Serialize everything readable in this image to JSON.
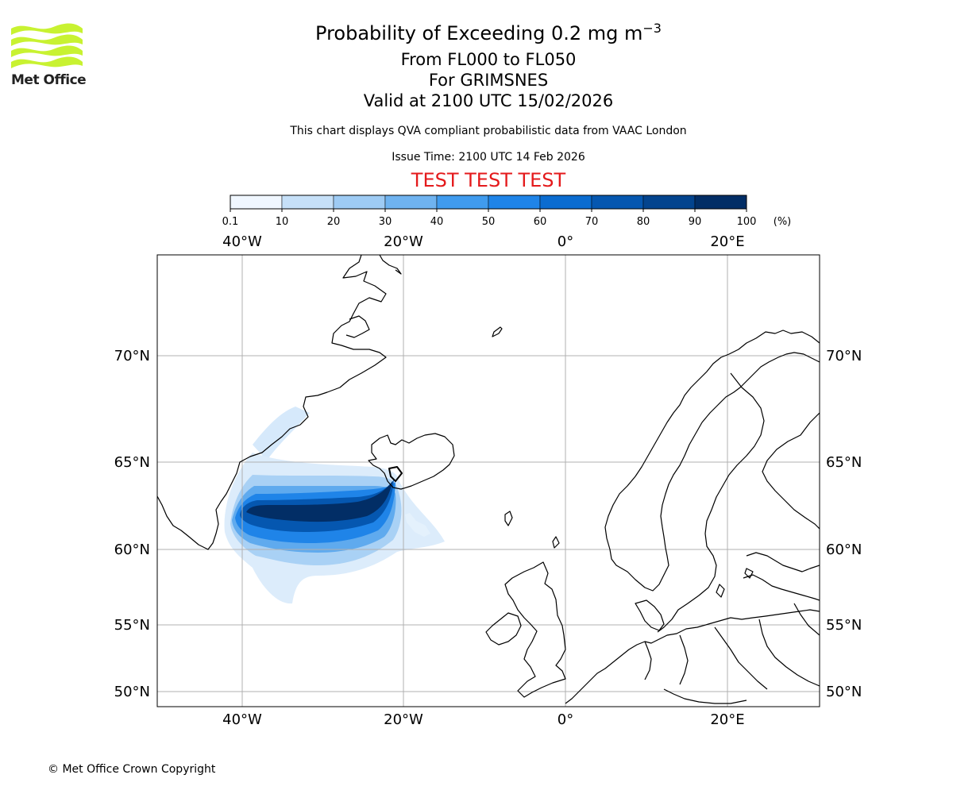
{
  "header": {
    "logo_text": "Met Office",
    "title_main": "Probability of Exceeding 0.2 mg m",
    "title_sup": "−3",
    "levels": "From FL000 to FL050",
    "volcano": "For GRIMSNES",
    "valid": "Valid at 2100 UTC 15/02/2026",
    "description": "This chart displays QVA compliant probabilistic data from VAAC London",
    "issue_time": "Issue Time: 2100 UTC 14 Feb 2026",
    "test_banner": "TEST TEST TEST"
  },
  "colorbar": {
    "ticks": [
      "0.1",
      "10",
      "20",
      "30",
      "40",
      "50",
      "60",
      "70",
      "80",
      "90",
      "100"
    ],
    "unit": "(%)",
    "colors": [
      "#f0f7ff",
      "#c6e0f8",
      "#9ecbf4",
      "#6fb3f0",
      "#409bee",
      "#1f84e8",
      "#0b6cd0",
      "#0557b0",
      "#03448e",
      "#022e66"
    ]
  },
  "map": {
    "lon_labels": [
      "40°W",
      "20°W",
      "0°",
      "20°E"
    ],
    "lat_labels": [
      "70°N",
      "65°N",
      "60°N",
      "55°N",
      "50°N"
    ],
    "lon_range": [
      -50,
      32
    ],
    "gridline_color": "#b0b0b0",
    "plume_intensity": "highest probability along 62–63°N from Iceland southwest toward 40°W"
  },
  "footer": {
    "copyright": "© Met Office Crown Copyright"
  }
}
